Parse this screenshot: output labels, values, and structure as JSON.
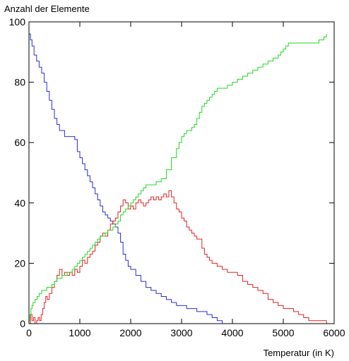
{
  "chart_data": {
    "type": "line",
    "title": "",
    "ylabel": "Anzahl der Elemente",
    "xlabel": "Temperatur (in K)",
    "xlim": [
      0,
      6000
    ],
    "ylim": [
      0,
      100
    ],
    "x_ticks": [
      0,
      1000,
      2000,
      3000,
      4000,
      5000,
      6000
    ],
    "y_ticks": [
      0,
      20,
      40,
      60,
      80,
      100
    ],
    "x_tick_labels": [
      "0",
      "1000",
      "2000",
      "3000",
      "4000",
      "5000",
      "6000"
    ],
    "y_tick_labels": [
      "0",
      "20",
      "40",
      "60",
      "80",
      "100"
    ],
    "grid": false,
    "legend": "none",
    "step": true,
    "series": [
      {
        "color": "#2b2bd6",
        "points": [
          [
            0,
            96
          ],
          [
            30,
            94
          ],
          [
            60,
            92
          ],
          [
            100,
            89
          ],
          [
            150,
            87
          ],
          [
            200,
            85
          ],
          [
            250,
            83
          ],
          [
            300,
            80
          ],
          [
            350,
            77
          ],
          [
            400,
            74
          ],
          [
            450,
            71
          ],
          [
            500,
            68
          ],
          [
            550,
            66
          ],
          [
            600,
            64
          ],
          [
            700,
            62
          ],
          [
            900,
            61
          ],
          [
            950,
            57
          ],
          [
            1000,
            55
          ],
          [
            1050,
            53
          ],
          [
            1100,
            51
          ],
          [
            1150,
            49
          ],
          [
            1200,
            47
          ],
          [
            1250,
            45
          ],
          [
            1300,
            43
          ],
          [
            1350,
            41
          ],
          [
            1400,
            39
          ],
          [
            1450,
            37
          ],
          [
            1500,
            36
          ],
          [
            1550,
            35
          ],
          [
            1600,
            34
          ],
          [
            1650,
            33
          ],
          [
            1700,
            32
          ],
          [
            1750,
            30
          ],
          [
            1800,
            27
          ],
          [
            1850,
            23
          ],
          [
            1900,
            21
          ],
          [
            1950,
            19
          ],
          [
            2000,
            18
          ],
          [
            2100,
            16
          ],
          [
            2200,
            14
          ],
          [
            2300,
            12
          ],
          [
            2400,
            11
          ],
          [
            2500,
            10
          ],
          [
            2600,
            9
          ],
          [
            2700,
            8
          ],
          [
            2800,
            7
          ],
          [
            2900,
            6
          ],
          [
            3000,
            6
          ],
          [
            3100,
            5
          ],
          [
            3200,
            5
          ],
          [
            3300,
            4
          ],
          [
            3400,
            4
          ],
          [
            3500,
            3
          ],
          [
            3600,
            2
          ],
          [
            3700,
            1
          ],
          [
            3800,
            0
          ],
          [
            5900,
            0
          ]
        ]
      },
      {
        "color": "#e32222",
        "points": [
          [
            0,
            0
          ],
          [
            30,
            3
          ],
          [
            60,
            1
          ],
          [
            90,
            2
          ],
          [
            120,
            0
          ],
          [
            150,
            1
          ],
          [
            180,
            2
          ],
          [
            210,
            1
          ],
          [
            240,
            3
          ],
          [
            270,
            5
          ],
          [
            300,
            7
          ],
          [
            330,
            9
          ],
          [
            360,
            8
          ],
          [
            400,
            10
          ],
          [
            450,
            12
          ],
          [
            500,
            14
          ],
          [
            550,
            16
          ],
          [
            600,
            18
          ],
          [
            650,
            16
          ],
          [
            700,
            17
          ],
          [
            750,
            16
          ],
          [
            800,
            17
          ],
          [
            850,
            16
          ],
          [
            900,
            18
          ],
          [
            950,
            17
          ],
          [
            1000,
            19
          ],
          [
            1050,
            21
          ],
          [
            1100,
            20
          ],
          [
            1150,
            22
          ],
          [
            1200,
            23
          ],
          [
            1250,
            24
          ],
          [
            1300,
            26
          ],
          [
            1350,
            27
          ],
          [
            1400,
            29
          ],
          [
            1450,
            30
          ],
          [
            1500,
            29
          ],
          [
            1550,
            31
          ],
          [
            1600,
            33
          ],
          [
            1650,
            34
          ],
          [
            1700,
            35
          ],
          [
            1750,
            37
          ],
          [
            1800,
            39
          ],
          [
            1850,
            41
          ],
          [
            1900,
            40
          ],
          [
            1950,
            38
          ],
          [
            2000,
            39
          ],
          [
            2050,
            38
          ],
          [
            2100,
            40
          ],
          [
            2150,
            41
          ],
          [
            2200,
            40
          ],
          [
            2250,
            39
          ],
          [
            2300,
            40
          ],
          [
            2350,
            41
          ],
          [
            2400,
            42
          ],
          [
            2450,
            41
          ],
          [
            2500,
            42
          ],
          [
            2550,
            41
          ],
          [
            2600,
            42
          ],
          [
            2650,
            43
          ],
          [
            2700,
            42
          ],
          [
            2750,
            44
          ],
          [
            2800,
            42
          ],
          [
            2850,
            40
          ],
          [
            2900,
            38
          ],
          [
            2950,
            37
          ],
          [
            3000,
            35
          ],
          [
            3050,
            34
          ],
          [
            3100,
            32
          ],
          [
            3150,
            31
          ],
          [
            3200,
            30
          ],
          [
            3250,
            29
          ],
          [
            3300,
            28
          ],
          [
            3350,
            28
          ],
          [
            3400,
            25
          ],
          [
            3450,
            23
          ],
          [
            3500,
            22
          ],
          [
            3550,
            21
          ],
          [
            3600,
            20
          ],
          [
            3650,
            20
          ],
          [
            3700,
            19
          ],
          [
            3750,
            19
          ],
          [
            3800,
            18
          ],
          [
            3900,
            17
          ],
          [
            4000,
            17
          ],
          [
            4100,
            16
          ],
          [
            4200,
            14
          ],
          [
            4300,
            13
          ],
          [
            4400,
            12
          ],
          [
            4500,
            11
          ],
          [
            4600,
            10
          ],
          [
            4700,
            8
          ],
          [
            4800,
            7
          ],
          [
            4900,
            6
          ],
          [
            5000,
            5
          ],
          [
            5100,
            5
          ],
          [
            5200,
            4
          ],
          [
            5300,
            3
          ],
          [
            5400,
            2
          ],
          [
            5500,
            1
          ],
          [
            5600,
            1
          ],
          [
            5700,
            1
          ],
          [
            5800,
            1
          ],
          [
            5850,
            0
          ],
          [
            5900,
            0
          ]
        ]
      },
      {
        "color": "#22d622",
        "points": [
          [
            0,
            1
          ],
          [
            20,
            3
          ],
          [
            40,
            5
          ],
          [
            60,
            6
          ],
          [
            80,
            7
          ],
          [
            120,
            8
          ],
          [
            160,
            9
          ],
          [
            200,
            10
          ],
          [
            250,
            11
          ],
          [
            300,
            11
          ],
          [
            350,
            12
          ],
          [
            400,
            12
          ],
          [
            450,
            13
          ],
          [
            500,
            14
          ],
          [
            550,
            15
          ],
          [
            600,
            15
          ],
          [
            650,
            16
          ],
          [
            700,
            16
          ],
          [
            750,
            17
          ],
          [
            800,
            17
          ],
          [
            850,
            18
          ],
          [
            900,
            19
          ],
          [
            950,
            20
          ],
          [
            1000,
            21
          ],
          [
            1050,
            22
          ],
          [
            1100,
            23
          ],
          [
            1150,
            24
          ],
          [
            1200,
            25
          ],
          [
            1250,
            26
          ],
          [
            1300,
            27
          ],
          [
            1350,
            28
          ],
          [
            1400,
            29
          ],
          [
            1450,
            29
          ],
          [
            1500,
            30
          ],
          [
            1550,
            31
          ],
          [
            1600,
            31
          ],
          [
            1650,
            32
          ],
          [
            1700,
            33
          ],
          [
            1750,
            34
          ],
          [
            1800,
            36
          ],
          [
            1850,
            37
          ],
          [
            1900,
            38
          ],
          [
            1950,
            39
          ],
          [
            2000,
            40
          ],
          [
            2050,
            41
          ],
          [
            2100,
            42
          ],
          [
            2150,
            43
          ],
          [
            2200,
            44
          ],
          [
            2250,
            45
          ],
          [
            2300,
            46
          ],
          [
            2400,
            46
          ],
          [
            2500,
            47
          ],
          [
            2600,
            48
          ],
          [
            2700,
            51
          ],
          [
            2800,
            55
          ],
          [
            2900,
            58
          ],
          [
            2950,
            60
          ],
          [
            3000,
            62
          ],
          [
            3050,
            63
          ],
          [
            3100,
            64
          ],
          [
            3150,
            64
          ],
          [
            3200,
            65
          ],
          [
            3250,
            66
          ],
          [
            3300,
            68
          ],
          [
            3350,
            70
          ],
          [
            3400,
            72
          ],
          [
            3450,
            73
          ],
          [
            3500,
            74
          ],
          [
            3550,
            75
          ],
          [
            3600,
            76
          ],
          [
            3650,
            77
          ],
          [
            3700,
            78
          ],
          [
            3800,
            78
          ],
          [
            3900,
            79
          ],
          [
            4000,
            80
          ],
          [
            4100,
            81
          ],
          [
            4200,
            82
          ],
          [
            4300,
            83
          ],
          [
            4400,
            84
          ],
          [
            4500,
            85
          ],
          [
            4600,
            86
          ],
          [
            4700,
            87
          ],
          [
            4800,
            88
          ],
          [
            4900,
            89
          ],
          [
            4950,
            90
          ],
          [
            5000,
            91
          ],
          [
            5050,
            92
          ],
          [
            5100,
            93
          ],
          [
            5500,
            93
          ],
          [
            5600,
            93
          ],
          [
            5700,
            94
          ],
          [
            5800,
            95
          ],
          [
            5850,
            96
          ]
        ]
      }
    ]
  }
}
